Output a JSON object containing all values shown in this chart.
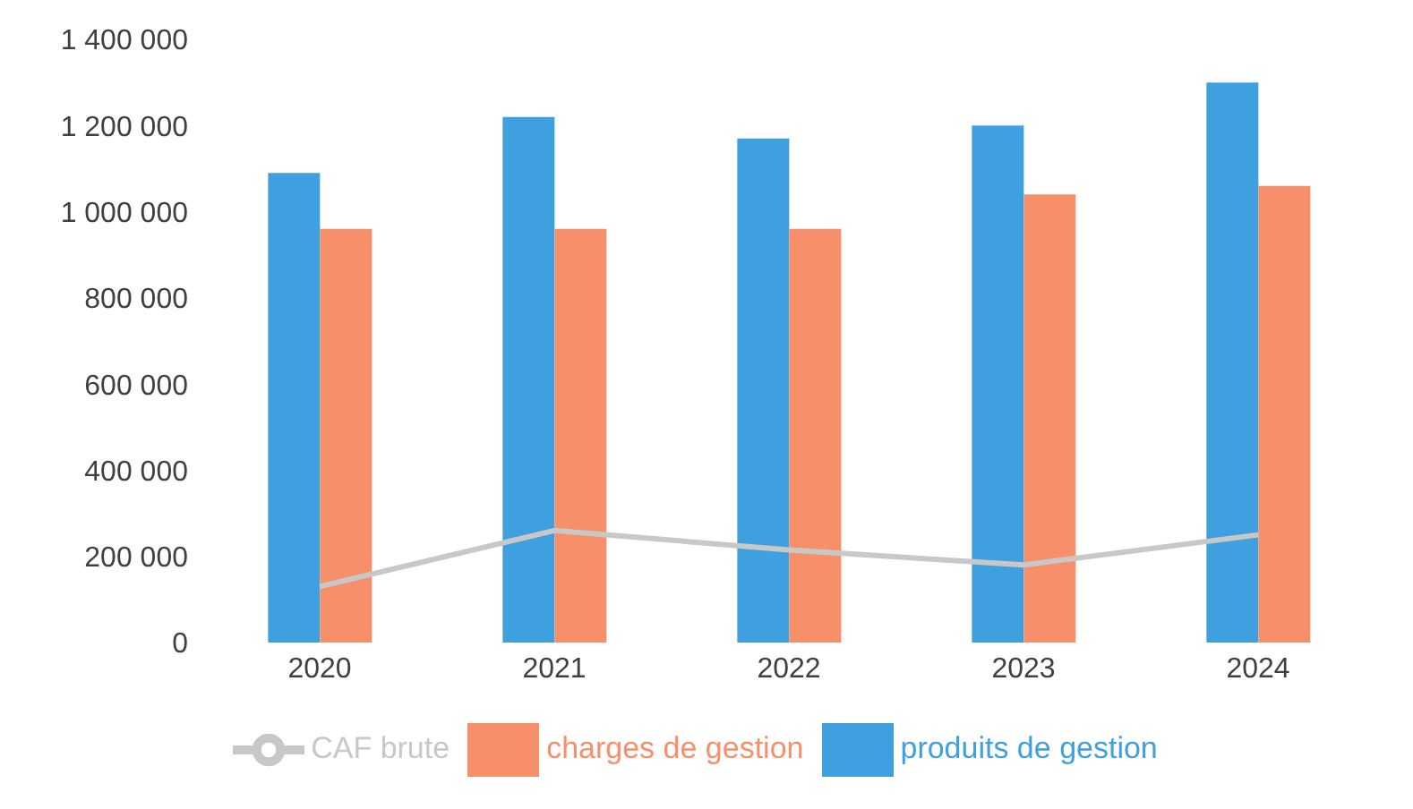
{
  "chart_data": {
    "type": "bar",
    "categories": [
      "2020",
      "2021",
      "2022",
      "2023",
      "2024"
    ],
    "series": [
      {
        "name": "produits de gestion",
        "color": "#3fa0e0",
        "values": [
          1090000,
          1220000,
          1170000,
          1200000,
          1300000
        ]
      },
      {
        "name": "charges de gestion",
        "color": "#f7906a",
        "values": [
          960000,
          960000,
          960000,
          1040000,
          1060000
        ]
      },
      {
        "name": "CAF brute",
        "type": "line",
        "color": "#c8c8c8",
        "values": [
          130000,
          260000,
          215000,
          180000,
          250000
        ]
      }
    ],
    "ylim": [
      0,
      1400000
    ],
    "yticks": [
      {
        "value": 0,
        "label": "0"
      },
      {
        "value": 200000,
        "label": "200 000"
      },
      {
        "value": 400000,
        "label": "400 000"
      },
      {
        "value": 600000,
        "label": "600 000"
      },
      {
        "value": 800000,
        "label": "800 000"
      },
      {
        "value": 1000000,
        "label": "1 000 000"
      },
      {
        "value": 1200000,
        "label": "1 200 000"
      },
      {
        "value": 1400000,
        "label": "1 400 000"
      }
    ],
    "grid": false,
    "legend": "bottom",
    "marker": "none"
  }
}
